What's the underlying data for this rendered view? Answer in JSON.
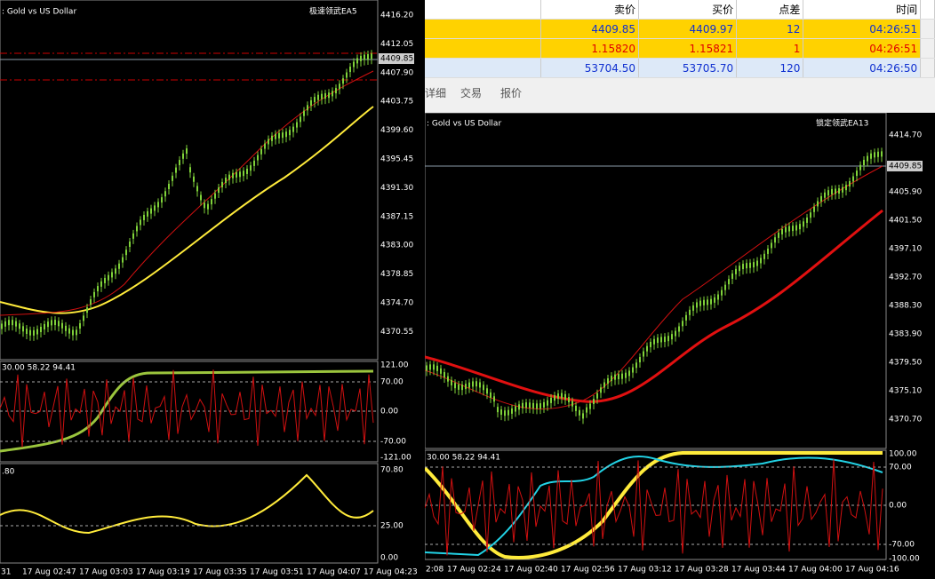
{
  "left_chart": {
    "title": ": Gold vs US Dollar",
    "ea": "极速领武EA5",
    "price_labels": [
      "4416.20",
      "4412.05",
      "4407.90",
      "4403.75",
      "4399.60",
      "4395.45",
      "4391.30",
      "4387.15",
      "4383.00",
      "4378.85",
      "4374.70",
      "4370.55"
    ],
    "current_price": "4409.85",
    "indicator1": {
      "label": "30.00 58.22 94.41",
      "levels": [
        "121.00",
        "70.00",
        "0.00",
        "-70.00",
        "-121.00"
      ]
    },
    "indicator2": {
      "label": ".80",
      "levels": [
        "70.80",
        "25.00",
        "0.00"
      ]
    },
    "time_labels": [
      "31",
      "17 Aug 02:47",
      "17 Aug 03:03",
      "17 Aug 03:19",
      "17 Aug 03:35",
      "17 Aug 03:51",
      "17 Aug 04:07",
      "17 Aug 04:23"
    ]
  },
  "quotes": {
    "headers": [
      "卖价",
      "买价",
      "点差",
      "时间"
    ],
    "rows": [
      [
        "4409.85",
        "4409.97",
        "12",
        "04:26:51"
      ],
      [
        "1.15820",
        "1.15821",
        "1",
        "04:26:51"
      ],
      [
        "53704.50",
        "53705.70",
        "120",
        "04:26:50"
      ]
    ]
  },
  "tabs": [
    "详细",
    "交易",
    "报价"
  ],
  "right_chart": {
    "title": ": Gold vs US Dollar",
    "ea": "锁定领武EA13",
    "price_labels": [
      "4414.70",
      "4405.90",
      "4401.50",
      "4397.10",
      "4392.70",
      "4388.30",
      "4383.90",
      "4379.50",
      "4375.10",
      "4370.70"
    ],
    "current_price": "4409.85",
    "indicator1": {
      "label": "30.00 58.22 94.41",
      "levels": [
        "100.00",
        "70.00",
        "0.00",
        "-70.00",
        "-100.00"
      ]
    },
    "time_labels": [
      "2:08",
      "17 Aug 02:24",
      "17 Aug 02:40",
      "17 Aug 02:56",
      "17 Aug 03:12",
      "17 Aug 03:28",
      "17 Aug 03:44",
      "17 Aug 04:00",
      "17 Aug 04:16"
    ]
  }
}
